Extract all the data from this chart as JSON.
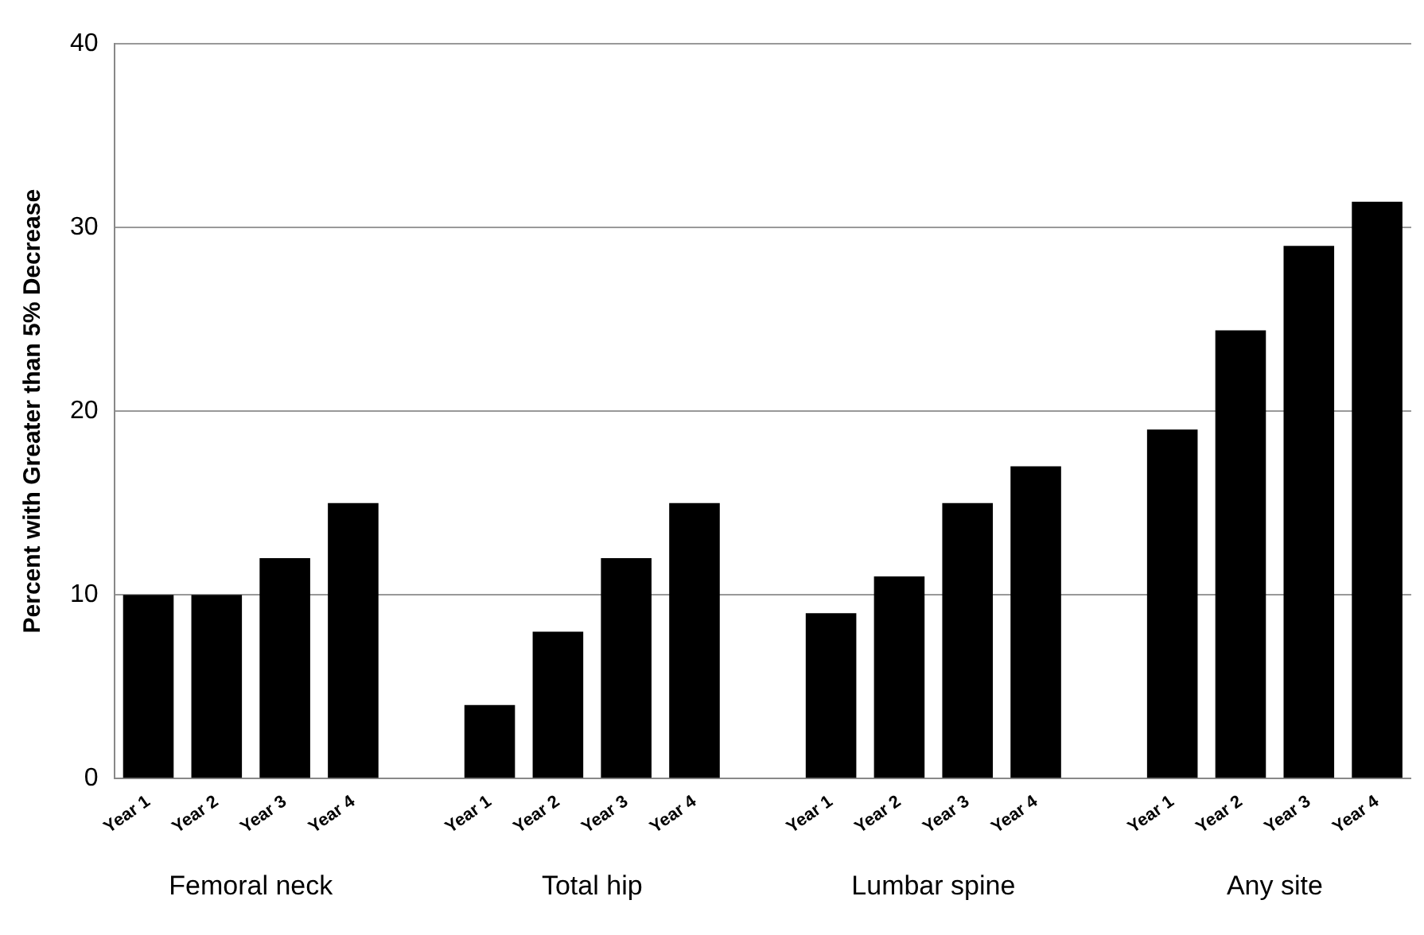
{
  "chart_data": {
    "type": "bar",
    "ylabel": "Percent with Greater than 5% Decrease",
    "categories": [
      "Year 1",
      "Year 2",
      "Year 3",
      "Year 4",
      null,
      "Year 1",
      "Year 2",
      "Year 3",
      "Year 4",
      null,
      "Year 1",
      "Year 2",
      "Year 3",
      "Year 4",
      null,
      "Year 1",
      "Year 2",
      "Year 3",
      "Year 4"
    ],
    "values": [
      10,
      10,
      12,
      15,
      null,
      4,
      8,
      12,
      15,
      null,
      9,
      11,
      15,
      17,
      null,
      19,
      24.4,
      29,
      31.4
    ],
    "color": "#000000",
    "annotations": [
      "Femoral neck",
      "Total hip",
      "Lumbar spine",
      "Any site"
    ],
    "ylim": [
      0,
      40
    ],
    "yticks": [
      0,
      10,
      20,
      30,
      40
    ],
    "grid": "y",
    "legend": false
  }
}
